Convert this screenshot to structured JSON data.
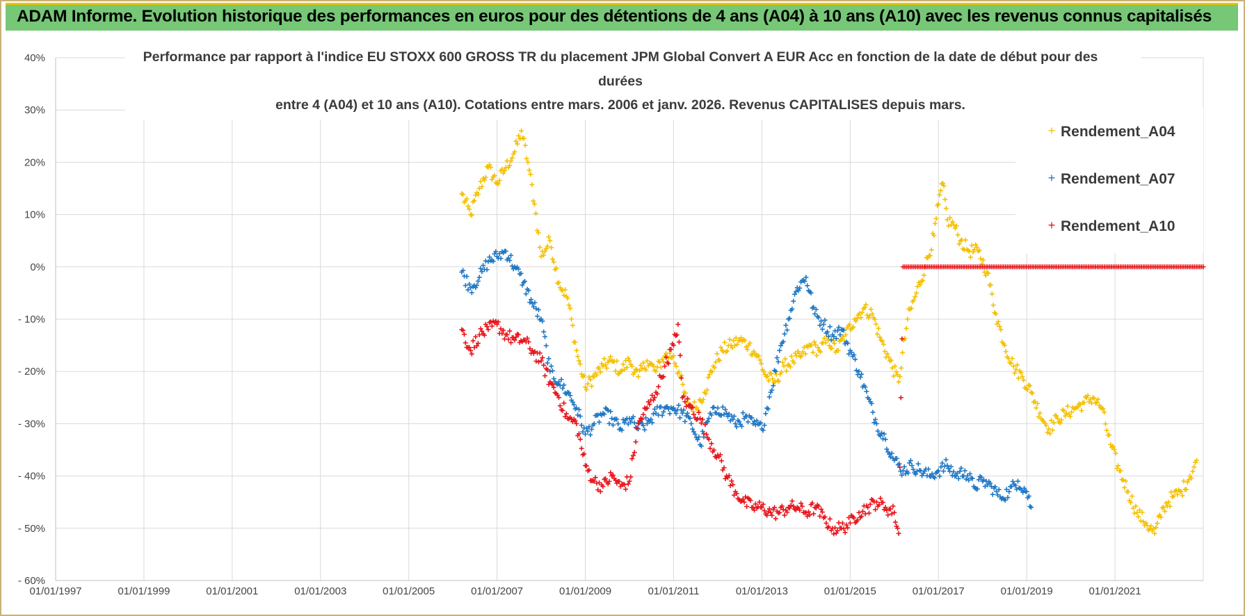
{
  "header": {
    "title": "ADAM Informe. Evolution historique des performances en euros pour des détentions de 4 ans (A04) à 10 ans (A10) avec les revenus connus capitalisés"
  },
  "colors": {
    "header_bg": "#76c776",
    "grid": "#d9d9d9",
    "A04": "#f5c000",
    "A07": "#1f77c4",
    "A10": "#e8141b"
  },
  "chart_data": {
    "type": "scatter",
    "title_lines": [
      "Performance par rapport à l'indice EU STOXX 600 GROSS TR  du placement JPM Global Convert A EUR Acc en fonction de la date de début pour des",
      "durées",
      "entre 4 (A04) et 10 ans (A10).  Cotations entre mars. 2006 et janv. 2026.  Revenus CAPITALISES  depuis mars."
    ],
    "xlabel": "",
    "ylabel": "",
    "xlim": [
      1997.0,
      2023.0
    ],
    "ylim": [
      -60,
      40
    ],
    "x_tick_values": [
      1997,
      1999,
      2001,
      2003,
      2005,
      2007,
      2009,
      2011,
      2013,
      2015,
      2017,
      2019,
      2021
    ],
    "x_tick_labels": [
      "01/01/1997",
      "01/01/1999",
      "01/01/2001",
      "01/01/2003",
      "01/01/2005",
      "01/01/2007",
      "01/01/2009",
      "01/01/2011",
      "01/01/2013",
      "01/01/2015",
      "01/01/2017",
      "01/01/2019",
      "01/01/2021"
    ],
    "y_tick_values": [
      40,
      30,
      20,
      10,
      0,
      -10,
      -20,
      -30,
      -40,
      -50,
      -60
    ],
    "y_tick_labels": [
      "40%",
      "30%",
      "20%",
      "10%",
      "0%",
      "- 10%",
      "- 20%",
      "- 30%",
      "- 40%",
      "- 50%",
      "- 60%"
    ],
    "grid": true,
    "legend_position": "top-right",
    "series": [
      {
        "name": "Rendement_A04",
        "color": "#f5c000",
        "points": [
          [
            2006.2,
            14
          ],
          [
            2006.4,
            10
          ],
          [
            2006.6,
            15
          ],
          [
            2006.8,
            19
          ],
          [
            2007.0,
            16
          ],
          [
            2007.2,
            19
          ],
          [
            2007.4,
            22
          ],
          [
            2007.55,
            26
          ],
          [
            2007.7,
            20
          ],
          [
            2007.85,
            12
          ],
          [
            2008.0,
            2
          ],
          [
            2008.2,
            5
          ],
          [
            2008.4,
            -3
          ],
          [
            2008.6,
            -6
          ],
          [
            2008.8,
            -16
          ],
          [
            2009.0,
            -23
          ],
          [
            2009.2,
            -21
          ],
          [
            2009.4,
            -19
          ],
          [
            2009.6,
            -18
          ],
          [
            2009.8,
            -20
          ],
          [
            2010.0,
            -18
          ],
          [
            2010.2,
            -21
          ],
          [
            2010.4,
            -18
          ],
          [
            2010.6,
            -20
          ],
          [
            2010.8,
            -17
          ],
          [
            2011.0,
            -17
          ],
          [
            2011.15,
            -21
          ],
          [
            2011.3,
            -26
          ],
          [
            2011.5,
            -27
          ],
          [
            2011.7,
            -24
          ],
          [
            2011.9,
            -19
          ],
          [
            2012.1,
            -16
          ],
          [
            2012.3,
            -15
          ],
          [
            2012.5,
            -14
          ],
          [
            2012.7,
            -15
          ],
          [
            2012.9,
            -17
          ],
          [
            2013.1,
            -21
          ],
          [
            2013.3,
            -22
          ],
          [
            2013.5,
            -19
          ],
          [
            2013.7,
            -18
          ],
          [
            2013.9,
            -17
          ],
          [
            2014.1,
            -15
          ],
          [
            2014.3,
            -16
          ],
          [
            2014.5,
            -14
          ],
          [
            2014.7,
            -16
          ],
          [
            2014.9,
            -13
          ],
          [
            2015.1,
            -10
          ],
          [
            2015.3,
            -8
          ],
          [
            2015.5,
            -9
          ],
          [
            2015.7,
            -14
          ],
          [
            2015.9,
            -18
          ],
          [
            2016.1,
            -22
          ],
          [
            2016.3,
            -10
          ],
          [
            2016.5,
            -5
          ],
          [
            2016.7,
            0
          ],
          [
            2016.9,
            6
          ],
          [
            2017.0,
            12
          ],
          [
            2017.1,
            16
          ],
          [
            2017.2,
            9
          ],
          [
            2017.35,
            8
          ],
          [
            2017.5,
            5
          ],
          [
            2017.7,
            3
          ],
          [
            2017.9,
            3
          ],
          [
            2018.1,
            -1
          ],
          [
            2018.3,
            -9
          ],
          [
            2018.5,
            -15
          ],
          [
            2018.7,
            -19
          ],
          [
            2018.9,
            -21
          ],
          [
            2019.1,
            -24
          ],
          [
            2019.3,
            -28
          ],
          [
            2019.5,
            -31
          ],
          [
            2019.7,
            -29
          ],
          [
            2019.9,
            -28
          ],
          [
            2020.1,
            -27
          ],
          [
            2020.3,
            -26
          ],
          [
            2020.5,
            -25
          ],
          [
            2020.7,
            -27
          ],
          [
            2020.9,
            -34
          ],
          [
            2021.1,
            -39
          ],
          [
            2021.3,
            -43
          ],
          [
            2021.5,
            -47
          ],
          [
            2021.7,
            -49
          ],
          [
            2021.9,
            -51
          ],
          [
            2022.1,
            -46
          ],
          [
            2022.3,
            -44
          ],
          [
            2022.5,
            -43
          ],
          [
            2022.7,
            -40
          ],
          [
            2022.85,
            -37
          ]
        ]
      },
      {
        "name": "Rendement_A07",
        "color": "#1f77c4",
        "points": [
          [
            2006.2,
            -1
          ],
          [
            2006.4,
            -4
          ],
          [
            2006.6,
            -2
          ],
          [
            2006.8,
            1
          ],
          [
            2007.0,
            2
          ],
          [
            2007.2,
            3
          ],
          [
            2007.4,
            0
          ],
          [
            2007.6,
            -3
          ],
          [
            2007.8,
            -7
          ],
          [
            2008.0,
            -10
          ],
          [
            2008.2,
            -20
          ],
          [
            2008.4,
            -22
          ],
          [
            2008.6,
            -24
          ],
          [
            2008.8,
            -27
          ],
          [
            2009.0,
            -32
          ],
          [
            2009.2,
            -30
          ],
          [
            2009.4,
            -28
          ],
          [
            2009.6,
            -29
          ],
          [
            2009.8,
            -31
          ],
          [
            2010.0,
            -29
          ],
          [
            2010.2,
            -31
          ],
          [
            2010.4,
            -30
          ],
          [
            2010.6,
            -28
          ],
          [
            2010.8,
            -27
          ],
          [
            2011.0,
            -27
          ],
          [
            2011.2,
            -28
          ],
          [
            2011.4,
            -30
          ],
          [
            2011.6,
            -34
          ],
          [
            2011.8,
            -29
          ],
          [
            2012.0,
            -27
          ],
          [
            2012.2,
            -28
          ],
          [
            2012.4,
            -30
          ],
          [
            2012.6,
            -29
          ],
          [
            2012.8,
            -30
          ],
          [
            2013.0,
            -31
          ],
          [
            2013.2,
            -24
          ],
          [
            2013.4,
            -16
          ],
          [
            2013.6,
            -10
          ],
          [
            2013.8,
            -4
          ],
          [
            2014.0,
            -2
          ],
          [
            2014.2,
            -9
          ],
          [
            2014.4,
            -11
          ],
          [
            2014.6,
            -13
          ],
          [
            2014.8,
            -12
          ],
          [
            2015.0,
            -16
          ],
          [
            2015.2,
            -20
          ],
          [
            2015.4,
            -25
          ],
          [
            2015.6,
            -30
          ],
          [
            2015.8,
            -33
          ],
          [
            2016.0,
            -37
          ],
          [
            2016.2,
            -39
          ],
          [
            2016.4,
            -38
          ],
          [
            2016.6,
            -39
          ],
          [
            2016.8,
            -40
          ],
          [
            2017.0,
            -39
          ],
          [
            2017.2,
            -38
          ],
          [
            2017.4,
            -40
          ],
          [
            2017.6,
            -39
          ],
          [
            2017.8,
            -42
          ],
          [
            2018.0,
            -41
          ],
          [
            2018.2,
            -42
          ],
          [
            2018.4,
            -44
          ],
          [
            2018.6,
            -43
          ],
          [
            2018.8,
            -41
          ],
          [
            2019.0,
            -43
          ],
          [
            2019.1,
            -46
          ]
        ]
      },
      {
        "name": "Rendement_A10",
        "color": "#e8141b",
        "points": [
          [
            2006.2,
            -12
          ],
          [
            2006.4,
            -16
          ],
          [
            2006.6,
            -13
          ],
          [
            2006.8,
            -12
          ],
          [
            2007.0,
            -11
          ],
          [
            2007.2,
            -13
          ],
          [
            2007.4,
            -14
          ],
          [
            2007.6,
            -14
          ],
          [
            2007.8,
            -16
          ],
          [
            2008.0,
            -18
          ],
          [
            2008.2,
            -22
          ],
          [
            2008.4,
            -25
          ],
          [
            2008.6,
            -29
          ],
          [
            2008.8,
            -30
          ],
          [
            2009.0,
            -38
          ],
          [
            2009.2,
            -41
          ],
          [
            2009.4,
            -42
          ],
          [
            2009.6,
            -40
          ],
          [
            2009.8,
            -42
          ],
          [
            2010.0,
            -41
          ],
          [
            2010.2,
            -30
          ],
          [
            2010.4,
            -27
          ],
          [
            2010.6,
            -24
          ],
          [
            2010.8,
            -19
          ],
          [
            2011.0,
            -15
          ],
          [
            2011.1,
            -11
          ],
          [
            2011.2,
            -25
          ],
          [
            2011.4,
            -27
          ],
          [
            2011.6,
            -29
          ],
          [
            2011.8,
            -33
          ],
          [
            2012.0,
            -36
          ],
          [
            2012.2,
            -40
          ],
          [
            2012.4,
            -43
          ],
          [
            2012.6,
            -45
          ],
          [
            2012.8,
            -46
          ],
          [
            2013.0,
            -46
          ],
          [
            2013.2,
            -47
          ],
          [
            2013.4,
            -47
          ],
          [
            2013.6,
            -46
          ],
          [
            2013.8,
            -46
          ],
          [
            2014.0,
            -47
          ],
          [
            2014.2,
            -46
          ],
          [
            2014.4,
            -48
          ],
          [
            2014.6,
            -50
          ],
          [
            2014.8,
            -50
          ],
          [
            2015.0,
            -49
          ],
          [
            2015.2,
            -47
          ],
          [
            2015.4,
            -46
          ],
          [
            2015.6,
            -45
          ],
          [
            2015.8,
            -46
          ],
          [
            2016.0,
            -47
          ],
          [
            2016.1,
            -51
          ],
          [
            2016.2,
            0
          ],
          [
            2017.0,
            0
          ],
          [
            2018.0,
            0
          ],
          [
            2019.0,
            0
          ],
          [
            2020.0,
            0
          ],
          [
            2021.0,
            0
          ],
          [
            2022.0,
            0
          ],
          [
            2023.0,
            0
          ]
        ]
      }
    ]
  }
}
